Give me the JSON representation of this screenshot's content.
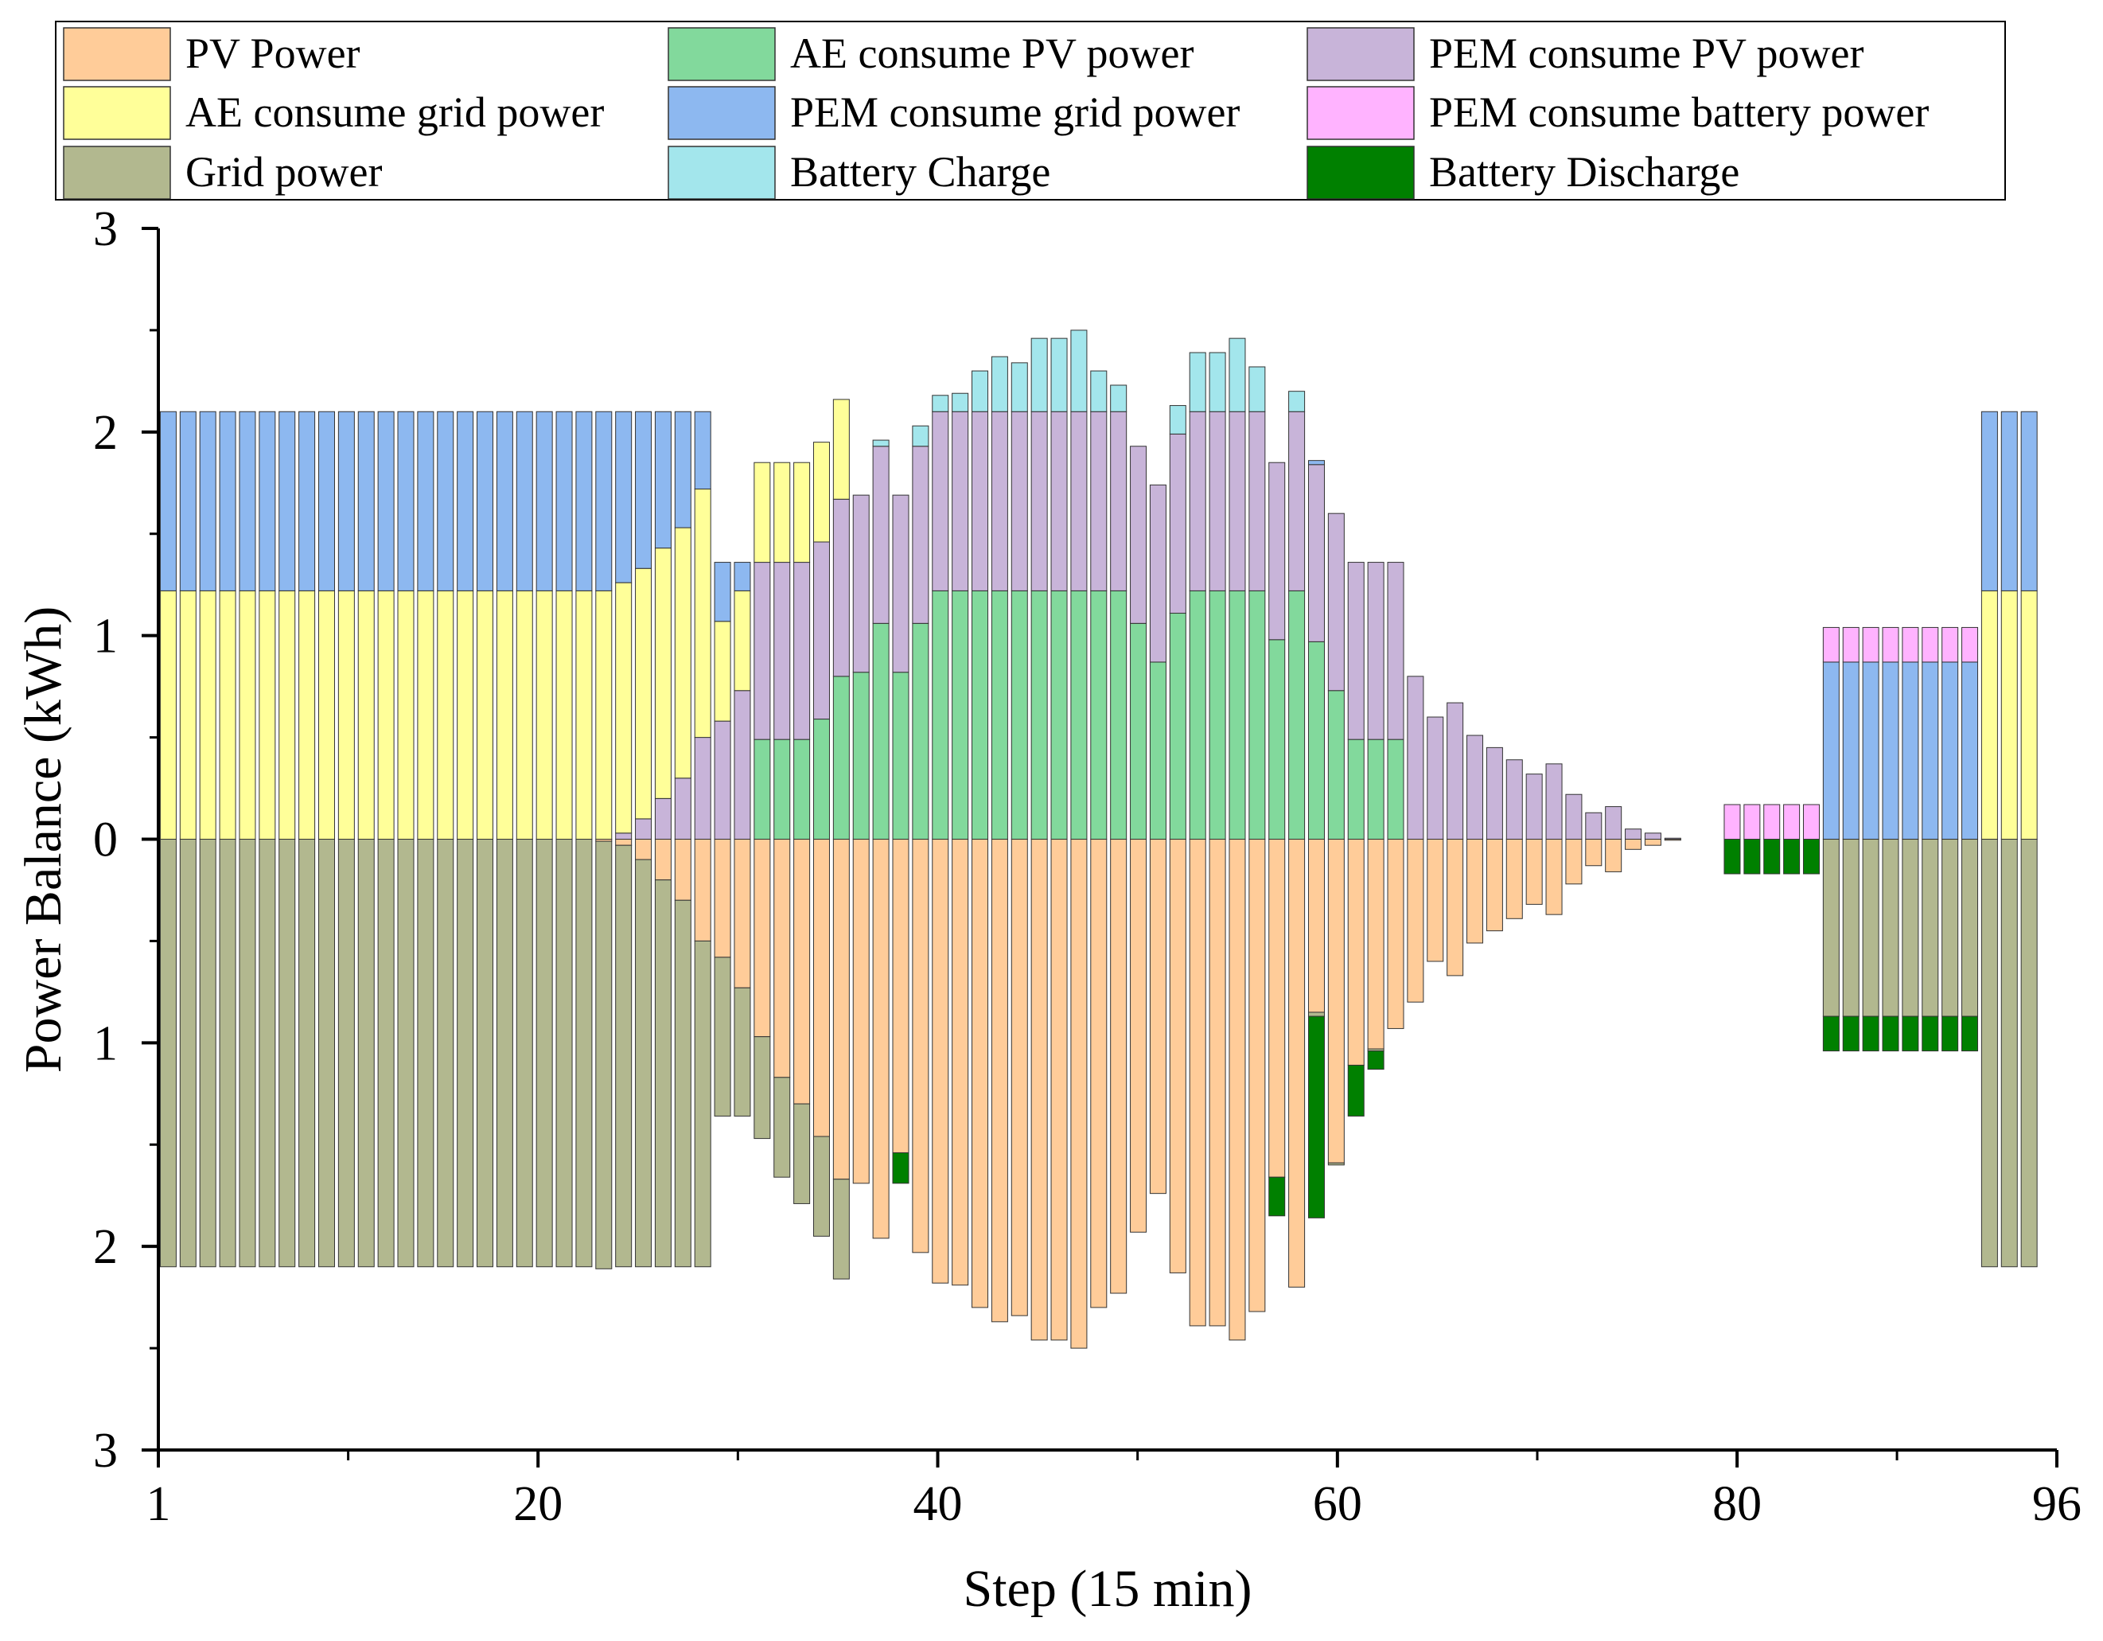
{
  "chart_data": {
    "type": "bar",
    "stacked": true,
    "title": "",
    "xlabel": "Step (15 min)",
    "ylabel": "Power Balance (kWh)",
    "xlim": [
      1,
      96
    ],
    "ylim": [
      -3,
      3
    ],
    "x_ticks": [
      {
        "value": 1,
        "label": "1"
      },
      {
        "value": 20,
        "label": "20"
      },
      {
        "value": 40,
        "label": "40"
      },
      {
        "value": 60,
        "label": "60"
      },
      {
        "value": 80,
        "label": "80"
      },
      {
        "value": 96,
        "label": "96"
      }
    ],
    "y_ticks": [
      {
        "value": 3,
        "label": "3"
      },
      {
        "value": 2,
        "label": "2"
      },
      {
        "value": 1,
        "label": "1"
      },
      {
        "value": 0,
        "label": "0"
      },
      {
        "value": -1,
        "label": "1"
      },
      {
        "value": -2,
        "label": "2"
      },
      {
        "value": -3,
        "label": "3"
      }
    ],
    "legend_position": "top",
    "grid": false,
    "series": [
      {
        "name": "PV Power",
        "color": "#FFCC99",
        "sign": "negative"
      },
      {
        "name": "AE consume PV power",
        "color": "#82D99C",
        "sign": "positive"
      },
      {
        "name": "PEM consume PV power",
        "color": "#C8B4D9",
        "sign": "positive"
      },
      {
        "name": "AE consume grid power",
        "color": "#FFFF99",
        "sign": "positive"
      },
      {
        "name": "PEM consume grid power",
        "color": "#8DB8F0",
        "sign": "positive"
      },
      {
        "name": "PEM consume battery power",
        "color": "#FFB3FF",
        "sign": "positive"
      },
      {
        "name": "Grid power",
        "color": "#B2B88F",
        "sign": "negative"
      },
      {
        "name": "Battery Charge",
        "color": "#A3E6EC",
        "sign": "positive"
      },
      {
        "name": "Battery Discharge",
        "color": "#008000",
        "sign": "negative"
      }
    ],
    "positive_stack_order": [
      "AE consume PV power",
      "PEM consume PV power",
      "AE consume grid power",
      "PEM consume grid power",
      "PEM consume battery power",
      "Battery Charge"
    ],
    "negative_stack_order": [
      "PV Power",
      "Grid power",
      "Battery Discharge"
    ],
    "bars": [
      {
        "step": 1,
        "ae_grid": 1.22,
        "pem_grid": 0.88,
        "grid": 2.1
      },
      {
        "step": 2,
        "ae_grid": 1.22,
        "pem_grid": 0.88,
        "grid": 2.1
      },
      {
        "step": 3,
        "ae_grid": 1.22,
        "pem_grid": 0.88,
        "grid": 2.1
      },
      {
        "step": 4,
        "ae_grid": 1.22,
        "pem_grid": 0.88,
        "grid": 2.1
      },
      {
        "step": 5,
        "ae_grid": 1.22,
        "pem_grid": 0.88,
        "grid": 2.1
      },
      {
        "step": 6,
        "ae_grid": 1.22,
        "pem_grid": 0.88,
        "grid": 2.1
      },
      {
        "step": 7,
        "ae_grid": 1.22,
        "pem_grid": 0.88,
        "grid": 2.1
      },
      {
        "step": 8,
        "ae_grid": 1.22,
        "pem_grid": 0.88,
        "grid": 2.1
      },
      {
        "step": 9,
        "ae_grid": 1.22,
        "pem_grid": 0.88,
        "grid": 2.1
      },
      {
        "step": 10,
        "ae_grid": 1.22,
        "pem_grid": 0.88,
        "grid": 2.1
      },
      {
        "step": 11,
        "ae_grid": 1.22,
        "pem_grid": 0.88,
        "grid": 2.1
      },
      {
        "step": 12,
        "ae_grid": 1.22,
        "pem_grid": 0.88,
        "grid": 2.1
      },
      {
        "step": 13,
        "ae_grid": 1.22,
        "pem_grid": 0.88,
        "grid": 2.1
      },
      {
        "step": 14,
        "ae_grid": 1.22,
        "pem_grid": 0.88,
        "grid": 2.1
      },
      {
        "step": 15,
        "ae_grid": 1.22,
        "pem_grid": 0.88,
        "grid": 2.1
      },
      {
        "step": 16,
        "ae_grid": 1.22,
        "pem_grid": 0.88,
        "grid": 2.1
      },
      {
        "step": 17,
        "ae_grid": 1.22,
        "pem_grid": 0.88,
        "grid": 2.1
      },
      {
        "step": 18,
        "ae_grid": 1.22,
        "pem_grid": 0.88,
        "grid": 2.1
      },
      {
        "step": 19,
        "ae_grid": 1.22,
        "pem_grid": 0.88,
        "grid": 2.1
      },
      {
        "step": 20,
        "ae_grid": 1.22,
        "pem_grid": 0.88,
        "grid": 2.1
      },
      {
        "step": 21,
        "ae_grid": 1.22,
        "pem_grid": 0.88,
        "grid": 2.1
      },
      {
        "step": 22,
        "ae_grid": 1.22,
        "pem_grid": 0.88,
        "grid": 2.1
      },
      {
        "step": 23,
        "ae_grid": 1.22,
        "pem_grid": 0.88,
        "grid": 2.1,
        "pv": 0.01
      },
      {
        "step": 24,
        "pem_pv": 0.03,
        "ae_grid": 1.23,
        "pem_grid": 0.84,
        "pv": 0.03,
        "grid": 2.07
      },
      {
        "step": 25,
        "pem_pv": 0.1,
        "ae_grid": 1.23,
        "pem_grid": 0.77,
        "pv": 0.1,
        "grid": 2.0
      },
      {
        "step": 26,
        "pem_pv": 0.2,
        "ae_grid": 1.23,
        "pem_grid": 0.67,
        "pv": 0.2,
        "grid": 1.9
      },
      {
        "step": 27,
        "pem_pv": 0.3,
        "ae_grid": 1.23,
        "pem_grid": 0.57,
        "pv": 0.3,
        "grid": 1.8
      },
      {
        "step": 28,
        "pem_pv": 0.5,
        "ae_grid": 1.22,
        "pem_grid": 0.38,
        "pv": 0.5,
        "grid": 1.6
      },
      {
        "step": 29,
        "pem_pv": 0.58,
        "ae_grid": 0.49,
        "pem_grid": 0.29,
        "pv": 0.58,
        "grid": 0.78
      },
      {
        "step": 30,
        "pem_pv": 0.73,
        "ae_grid": 0.49,
        "pem_grid": 0.14,
        "pv": 0.73,
        "grid": 0.63
      },
      {
        "step": 31,
        "ae_pv": 0.49,
        "pem_pv": 0.87,
        "ae_grid": 0.49,
        "pv": 0.97,
        "grid": 0.5
      },
      {
        "step": 32,
        "ae_pv": 0.49,
        "pem_pv": 0.87,
        "ae_grid": 0.49,
        "pv": 1.17,
        "grid": 0.49
      },
      {
        "step": 33,
        "ae_pv": 0.49,
        "pem_pv": 0.87,
        "ae_grid": 0.49,
        "pv": 1.3,
        "grid": 0.49
      },
      {
        "step": 34,
        "ae_pv": 0.59,
        "pem_pv": 0.87,
        "ae_grid": 0.49,
        "pv": 1.46,
        "grid": 0.49
      },
      {
        "step": 35,
        "ae_pv": 0.8,
        "pem_pv": 0.87,
        "ae_grid": 0.49,
        "pv": 1.67,
        "grid": 0.49
      },
      {
        "step": 36,
        "ae_pv": 0.82,
        "pem_pv": 0.87,
        "pv": 1.69
      },
      {
        "step": 37,
        "ae_pv": 1.06,
        "pem_pv": 0.87,
        "bat_charge": 0.03,
        "pv": 1.96
      },
      {
        "step": 38,
        "ae_pv": 0.82,
        "pem_pv": 0.87,
        "pv": 1.54,
        "bat_dis": 0.15
      },
      {
        "step": 39,
        "ae_pv": 1.06,
        "pem_pv": 0.87,
        "bat_charge": 0.1,
        "pv": 2.03
      },
      {
        "step": 40,
        "ae_pv": 1.22,
        "pem_pv": 0.88,
        "bat_charge": 0.08,
        "pv": 2.18
      },
      {
        "step": 41,
        "ae_pv": 1.22,
        "pem_pv": 0.88,
        "bat_charge": 0.09,
        "pv": 2.19
      },
      {
        "step": 42,
        "ae_pv": 1.22,
        "pem_pv": 0.88,
        "bat_charge": 0.2,
        "pv": 2.3
      },
      {
        "step": 43,
        "ae_pv": 1.22,
        "pem_pv": 0.88,
        "bat_charge": 0.27,
        "pv": 2.37
      },
      {
        "step": 44,
        "ae_pv": 1.22,
        "pem_pv": 0.88,
        "bat_charge": 0.24,
        "pv": 2.34
      },
      {
        "step": 45,
        "ae_pv": 1.22,
        "pem_pv": 0.88,
        "bat_charge": 0.36,
        "pv": 2.46
      },
      {
        "step": 46,
        "ae_pv": 1.22,
        "pem_pv": 0.88,
        "bat_charge": 0.36,
        "pv": 2.46
      },
      {
        "step": 47,
        "ae_pv": 1.22,
        "pem_pv": 0.88,
        "bat_charge": 0.4,
        "pv": 2.5
      },
      {
        "step": 48,
        "ae_pv": 1.22,
        "pem_pv": 0.88,
        "bat_charge": 0.2,
        "pv": 2.3
      },
      {
        "step": 49,
        "ae_pv": 1.22,
        "pem_pv": 0.88,
        "bat_charge": 0.13,
        "pv": 2.23
      },
      {
        "step": 50,
        "ae_pv": 1.06,
        "pem_pv": 0.87,
        "pv": 1.93
      },
      {
        "step": 51,
        "ae_pv": 0.87,
        "pem_pv": 0.87,
        "pv": 1.74
      },
      {
        "step": 52,
        "ae_pv": 1.11,
        "pem_pv": 0.88,
        "bat_charge": 0.14,
        "pv": 2.13
      },
      {
        "step": 53,
        "ae_pv": 1.22,
        "pem_pv": 0.88,
        "bat_charge": 0.29,
        "pv": 2.39
      },
      {
        "step": 54,
        "ae_pv": 1.22,
        "pem_pv": 0.88,
        "bat_charge": 0.29,
        "pv": 2.39
      },
      {
        "step": 55,
        "ae_pv": 1.22,
        "pem_pv": 0.88,
        "bat_charge": 0.36,
        "pv": 2.46
      },
      {
        "step": 56,
        "ae_pv": 1.22,
        "pem_pv": 0.88,
        "bat_charge": 0.22,
        "pv": 2.32
      },
      {
        "step": 57,
        "ae_pv": 0.98,
        "pem_pv": 0.87,
        "pv": 1.66,
        "bat_dis": 0.19
      },
      {
        "step": 58,
        "ae_pv": 1.22,
        "pem_pv": 0.88,
        "bat_charge": 0.1,
        "pv": 2.2
      },
      {
        "step": 59,
        "ae_pv": 0.97,
        "pem_pv": 0.87,
        "pem_grid": 0.02,
        "pv": 0.85,
        "grid": 0.02,
        "bat_dis": 0.99
      },
      {
        "step": 60,
        "ae_pv": 0.73,
        "pem_pv": 0.87,
        "pv": 1.59,
        "grid": 0.01
      },
      {
        "step": 61,
        "ae_pv": 0.49,
        "pem_pv": 0.87,
        "pv": 1.11,
        "bat_dis": 0.25
      },
      {
        "step": 62,
        "ae_pv": 0.49,
        "pem_pv": 0.87,
        "pv": 1.03,
        "bat_dis": 0.09,
        "grid": 0.01
      },
      {
        "step": 63,
        "ae_pv": 0.49,
        "pem_pv": 0.87,
        "pv": 0.93
      },
      {
        "step": 64,
        "pem_pv": 0.8,
        "pv": 0.8
      },
      {
        "step": 65,
        "pem_pv": 0.6,
        "pv": 0.6
      },
      {
        "step": 66,
        "pem_pv": 0.67,
        "pv": 0.67
      },
      {
        "step": 67,
        "pem_pv": 0.51,
        "pv": 0.51
      },
      {
        "step": 68,
        "pem_pv": 0.45,
        "pv": 0.45
      },
      {
        "step": 69,
        "pem_pv": 0.39,
        "pv": 0.39
      },
      {
        "step": 70,
        "pem_pv": 0.32,
        "pv": 0.32
      },
      {
        "step": 71,
        "pem_pv": 0.37,
        "pv": 0.37
      },
      {
        "step": 72,
        "pem_pv": 0.22,
        "pv": 0.22
      },
      {
        "step": 73,
        "pem_pv": 0.13,
        "pv": 0.13
      },
      {
        "step": 74,
        "pem_pv": 0.16,
        "pv": 0.16
      },
      {
        "step": 75,
        "pem_pv": 0.05,
        "pv": 0.05
      },
      {
        "step": 76,
        "pem_pv": 0.03,
        "pv": 0.03
      },
      {
        "step": 77,
        "pem_pv": 0.005,
        "pv": 0.005
      },
      {
        "step": 78
      },
      {
        "step": 79
      },
      {
        "step": 80,
        "pem_bat": 0.17,
        "bat_dis": 0.17
      },
      {
        "step": 81,
        "pem_bat": 0.17,
        "bat_dis": 0.17
      },
      {
        "step": 82,
        "pem_bat": 0.17,
        "bat_dis": 0.17
      },
      {
        "step": 83,
        "pem_bat": 0.17,
        "bat_dis": 0.17
      },
      {
        "step": 84,
        "pem_bat": 0.17,
        "bat_dis": 0.17
      },
      {
        "step": 85,
        "pem_grid": 0.87,
        "pem_bat": 0.17,
        "grid": 0.87,
        "bat_dis": 0.17
      },
      {
        "step": 86,
        "pem_grid": 0.87,
        "pem_bat": 0.17,
        "grid": 0.87,
        "bat_dis": 0.17
      },
      {
        "step": 87,
        "pem_grid": 0.87,
        "pem_bat": 0.17,
        "grid": 0.87,
        "bat_dis": 0.17
      },
      {
        "step": 88,
        "pem_grid": 0.87,
        "pem_bat": 0.17,
        "grid": 0.87,
        "bat_dis": 0.17
      },
      {
        "step": 89,
        "pem_grid": 0.87,
        "pem_bat": 0.17,
        "grid": 0.87,
        "bat_dis": 0.17
      },
      {
        "step": 90,
        "pem_grid": 0.87,
        "pem_bat": 0.17,
        "grid": 0.87,
        "bat_dis": 0.17
      },
      {
        "step": 91,
        "pem_grid": 0.87,
        "pem_bat": 0.17,
        "grid": 0.87,
        "bat_dis": 0.17
      },
      {
        "step": 92,
        "pem_grid": 0.87,
        "pem_bat": 0.17,
        "grid": 0.87,
        "bat_dis": 0.17
      },
      {
        "step": 93,
        "ae_grid": 1.22,
        "pem_grid": 0.88,
        "grid": 2.1
      },
      {
        "step": 94,
        "ae_grid": 1.22,
        "pem_grid": 0.88,
        "grid": 2.1
      },
      {
        "step": 95,
        "ae_grid": 1.22,
        "pem_grid": 0.88,
        "grid": 2.1
      }
    ]
  }
}
